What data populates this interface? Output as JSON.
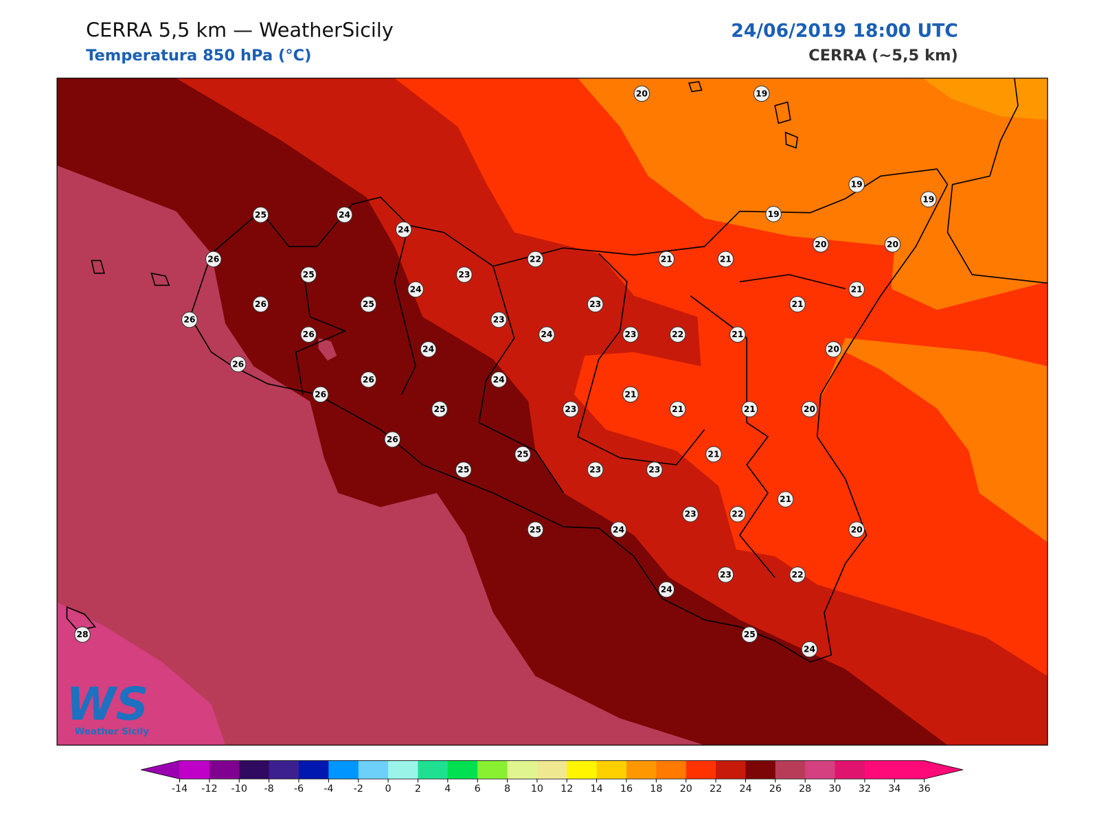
{
  "header": {
    "title": "CERRA 5,5 km — WeatherSicily",
    "subtitle": "Temperatura 850 hPa (°C)",
    "datetime": "24/06/2019 18:00 UTC",
    "model": "CERRA (~5,5 km)"
  },
  "logo": {
    "mark": "WS",
    "name": "Weather Sicily"
  },
  "stations": [
    20,
    19,
    19,
    19,
    19,
    20,
    20,
    25,
    24,
    24,
    26,
    25,
    23,
    22,
    21,
    21,
    21,
    21,
    26,
    25,
    24,
    23,
    23,
    26,
    26,
    24,
    24,
    23,
    22,
    21,
    20,
    26,
    26,
    24,
    26,
    25,
    23,
    21,
    21,
    21,
    20,
    26,
    25,
    21,
    25,
    23,
    23,
    21,
    23,
    22,
    25,
    24,
    20,
    23,
    22,
    24,
    25,
    24,
    28
  ],
  "colorbar": {
    "ticks": [
      -14,
      -12,
      -10,
      -8,
      -6,
      -4,
      -2,
      0,
      2,
      4,
      6,
      8,
      10,
      12,
      14,
      16,
      18,
      20,
      22,
      24,
      26,
      28,
      30,
      32,
      34,
      36
    ],
    "colors": [
      "#c000c8",
      "#800090",
      "#300a60",
      "#3d2090",
      "#0018b0",
      "#0095ff",
      "#6cd0f8",
      "#9af5e8",
      "#1ee090",
      "#00e050",
      "#88f030",
      "#e0f590",
      "#f0e890",
      "#fff500",
      "#ffd000",
      "#ff9800",
      "#ff7a00",
      "#ff3300",
      "#c81a0a",
      "#7c0606",
      "#b83c58",
      "#d44080",
      "#e0146e",
      "#ff0a78",
      "#ff0a78"
    ],
    "under": "#9a00b0",
    "over": "#ff0a78"
  }
}
